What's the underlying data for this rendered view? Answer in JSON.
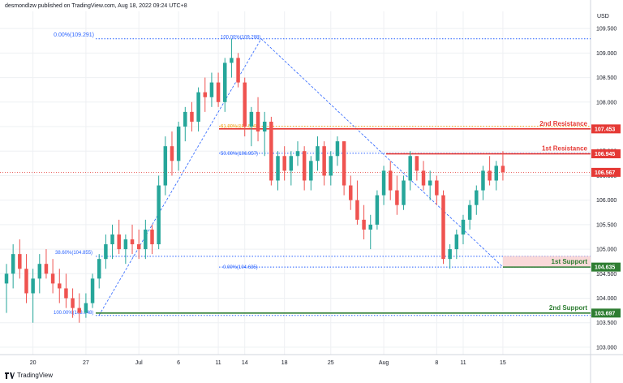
{
  "header": {
    "published_text": "desmondlzw published on TradingView.com, Aug 18, 2022 09:24 UTC+8"
  },
  "brand": {
    "name": "TradingView",
    "logo_icon": "tradingview-logo-icon"
  },
  "chart_data": {
    "type": "candlestick",
    "currency_label": "USD",
    "y_ticks": [
      103.0,
      103.5,
      104.0,
      104.5,
      105.0,
      105.5,
      106.0,
      106.5,
      107.0,
      107.5,
      108.0,
      108.5,
      109.0,
      109.5
    ],
    "ylim": [
      102.85,
      109.85
    ],
    "x_ticks": [
      "20",
      "27",
      "Jul",
      "6",
      "11",
      "14",
      "18",
      "25",
      "Aug",
      "8",
      "11",
      "15"
    ],
    "x_tick_index": [
      4,
      12,
      20,
      26,
      32,
      36,
      42,
      49,
      57,
      65,
      69,
      75
    ],
    "x_count": 88,
    "candles": [
      [
        104.3,
        104.7,
        103.7,
        104.5
      ],
      [
        104.5,
        105.1,
        104.2,
        104.9
      ],
      [
        104.9,
        105.2,
        104.4,
        104.6
      ],
      [
        104.6,
        104.9,
        103.9,
        104.1
      ],
      [
        104.1,
        104.6,
        103.5,
        104.4
      ],
      [
        104.4,
        104.9,
        104.1,
        104.7
      ],
      [
        104.7,
        105.0,
        104.4,
        104.5
      ],
      [
        104.5,
        104.8,
        104.1,
        104.3
      ],
      [
        104.3,
        104.6,
        103.9,
        104.2
      ],
      [
        104.2,
        104.5,
        103.8,
        104.0
      ],
      [
        104.0,
        104.2,
        103.6,
        103.8
      ],
      [
        103.8,
        104.1,
        103.5,
        103.7
      ],
      [
        103.7,
        104.1,
        103.6,
        103.9
      ],
      [
        103.9,
        104.5,
        103.8,
        104.4
      ],
      [
        104.4,
        104.9,
        104.2,
        104.8
      ],
      [
        104.8,
        105.3,
        104.6,
        105.1
      ],
      [
        105.1,
        105.5,
        104.8,
        105.3
      ],
      [
        105.3,
        105.6,
        104.9,
        105.0
      ],
      [
        105.0,
        105.3,
        104.7,
        105.2
      ],
      [
        105.2,
        105.5,
        104.9,
        105.1
      ],
      [
        105.1,
        105.4,
        104.8,
        105.0
      ],
      [
        105.0,
        105.6,
        104.8,
        105.4
      ],
      [
        105.4,
        105.5,
        104.9,
        105.1
      ],
      [
        105.1,
        106.5,
        105.0,
        106.3
      ],
      [
        106.3,
        107.3,
        106.1,
        107.1
      ],
      [
        107.1,
        107.4,
        106.5,
        106.8
      ],
      [
        106.8,
        107.6,
        106.6,
        107.5
      ],
      [
        107.5,
        107.9,
        107.2,
        107.8
      ],
      [
        107.8,
        108.0,
        107.4,
        107.6
      ],
      [
        107.6,
        108.3,
        107.4,
        108.2
      ],
      [
        108.2,
        108.5,
        107.8,
        108.1
      ],
      [
        108.1,
        108.6,
        107.9,
        108.4
      ],
      [
        108.4,
        108.6,
        107.9,
        108.0
      ],
      [
        108.0,
        108.9,
        107.8,
        108.8
      ],
      [
        108.8,
        109.29,
        108.5,
        108.9
      ],
      [
        108.9,
        109.0,
        108.3,
        108.4
      ],
      [
        108.4,
        108.5,
        107.3,
        107.5
      ],
      [
        107.5,
        107.9,
        107.1,
        107.8
      ],
      [
        107.8,
        108.1,
        107.2,
        107.4
      ],
      [
        107.4,
        107.8,
        106.9,
        107.6
      ],
      [
        107.6,
        107.7,
        106.3,
        106.4
      ],
      [
        106.4,
        107.0,
        106.2,
        106.9
      ],
      [
        106.9,
        107.1,
        106.4,
        106.6
      ],
      [
        106.6,
        107.0,
        106.3,
        106.9
      ],
      [
        106.9,
        107.2,
        106.7,
        107.0
      ],
      [
        107.0,
        107.1,
        106.2,
        106.4
      ],
      [
        106.4,
        106.9,
        106.2,
        106.8
      ],
      [
        106.8,
        107.3,
        106.6,
        107.1
      ],
      [
        107.1,
        107.2,
        106.3,
        106.5
      ],
      [
        106.5,
        107.0,
        106.3,
        106.9
      ],
      [
        106.9,
        107.3,
        106.7,
        107.2
      ],
      [
        107.2,
        107.2,
        106.1,
        106.3
      ],
      [
        106.3,
        106.5,
        105.8,
        106.0
      ],
      [
        106.0,
        106.4,
        105.5,
        105.6
      ],
      [
        105.6,
        105.9,
        105.2,
        105.4
      ],
      [
        105.4,
        105.7,
        105.0,
        105.5
      ],
      [
        105.5,
        106.2,
        105.4,
        106.1
      ],
      [
        106.1,
        106.7,
        105.9,
        106.6
      ],
      [
        106.6,
        106.8,
        106.0,
        106.2
      ],
      [
        106.2,
        106.5,
        105.7,
        105.9
      ],
      [
        105.9,
        106.5,
        105.8,
        106.4
      ],
      [
        106.4,
        107.0,
        106.2,
        106.9
      ],
      [
        106.9,
        106.9,
        106.4,
        106.6
      ],
      [
        106.6,
        106.8,
        106.2,
        106.3
      ],
      [
        106.3,
        106.6,
        106.0,
        106.4
      ],
      [
        106.4,
        106.5,
        105.9,
        106.1
      ],
      [
        106.1,
        106.2,
        104.7,
        104.8
      ],
      [
        104.8,
        105.1,
        104.6,
        105.0
      ],
      [
        105.0,
        105.4,
        104.8,
        105.3
      ],
      [
        105.3,
        105.7,
        105.1,
        105.6
      ],
      [
        105.6,
        106.0,
        105.4,
        105.9
      ],
      [
        105.9,
        106.3,
        105.7,
        106.2
      ],
      [
        106.2,
        106.7,
        106.0,
        106.6
      ],
      [
        106.6,
        106.9,
        106.3,
        106.4
      ],
      [
        106.4,
        106.8,
        106.2,
        106.7
      ],
      [
        106.7,
        107.0,
        106.4,
        106.57
      ]
    ],
    "fib_high": {
      "top_label": "0.00%(109.291)",
      "top_value": 109.291,
      "peak_label": "100.00%(109.288)",
      "mid_label": "61.80%(107.509)",
      "mid_value": 107.509,
      "half_label": "50.00%(106.957)",
      "half_value": 106.957,
      "bottom_label": "0.00%(104.635)",
      "bottom_value": 104.635
    },
    "fib_low": {
      "label_3860": "38.60%(104.855)",
      "value_3860": 104.855,
      "label_100": "100.00%(103.648)",
      "value_100": 103.648
    },
    "levels": [
      {
        "name": "2nd Resistance",
        "value": 107.453,
        "value_text": "107.453",
        "color": "#e53935"
      },
      {
        "name": "1st Resistance",
        "value": 106.945,
        "value_text": "106.945",
        "color": "#e53935"
      },
      {
        "name": "1st Support",
        "value": 104.635,
        "value_text": "104.635",
        "color": "#2e7d32"
      },
      {
        "name": "2nd Support",
        "value": 103.697,
        "value_text": "103.697",
        "color": "#2e7d32"
      }
    ],
    "current_price": {
      "value": 106.567,
      "value_text": "106.567",
      "color": "#e53935"
    },
    "colors": {
      "up": "#26a69a",
      "down": "#ef5350",
      "fib": "#2962ff",
      "grid": "#eef0f3",
      "axis_text": "#131722",
      "fib_gold": "#f5a623"
    }
  }
}
